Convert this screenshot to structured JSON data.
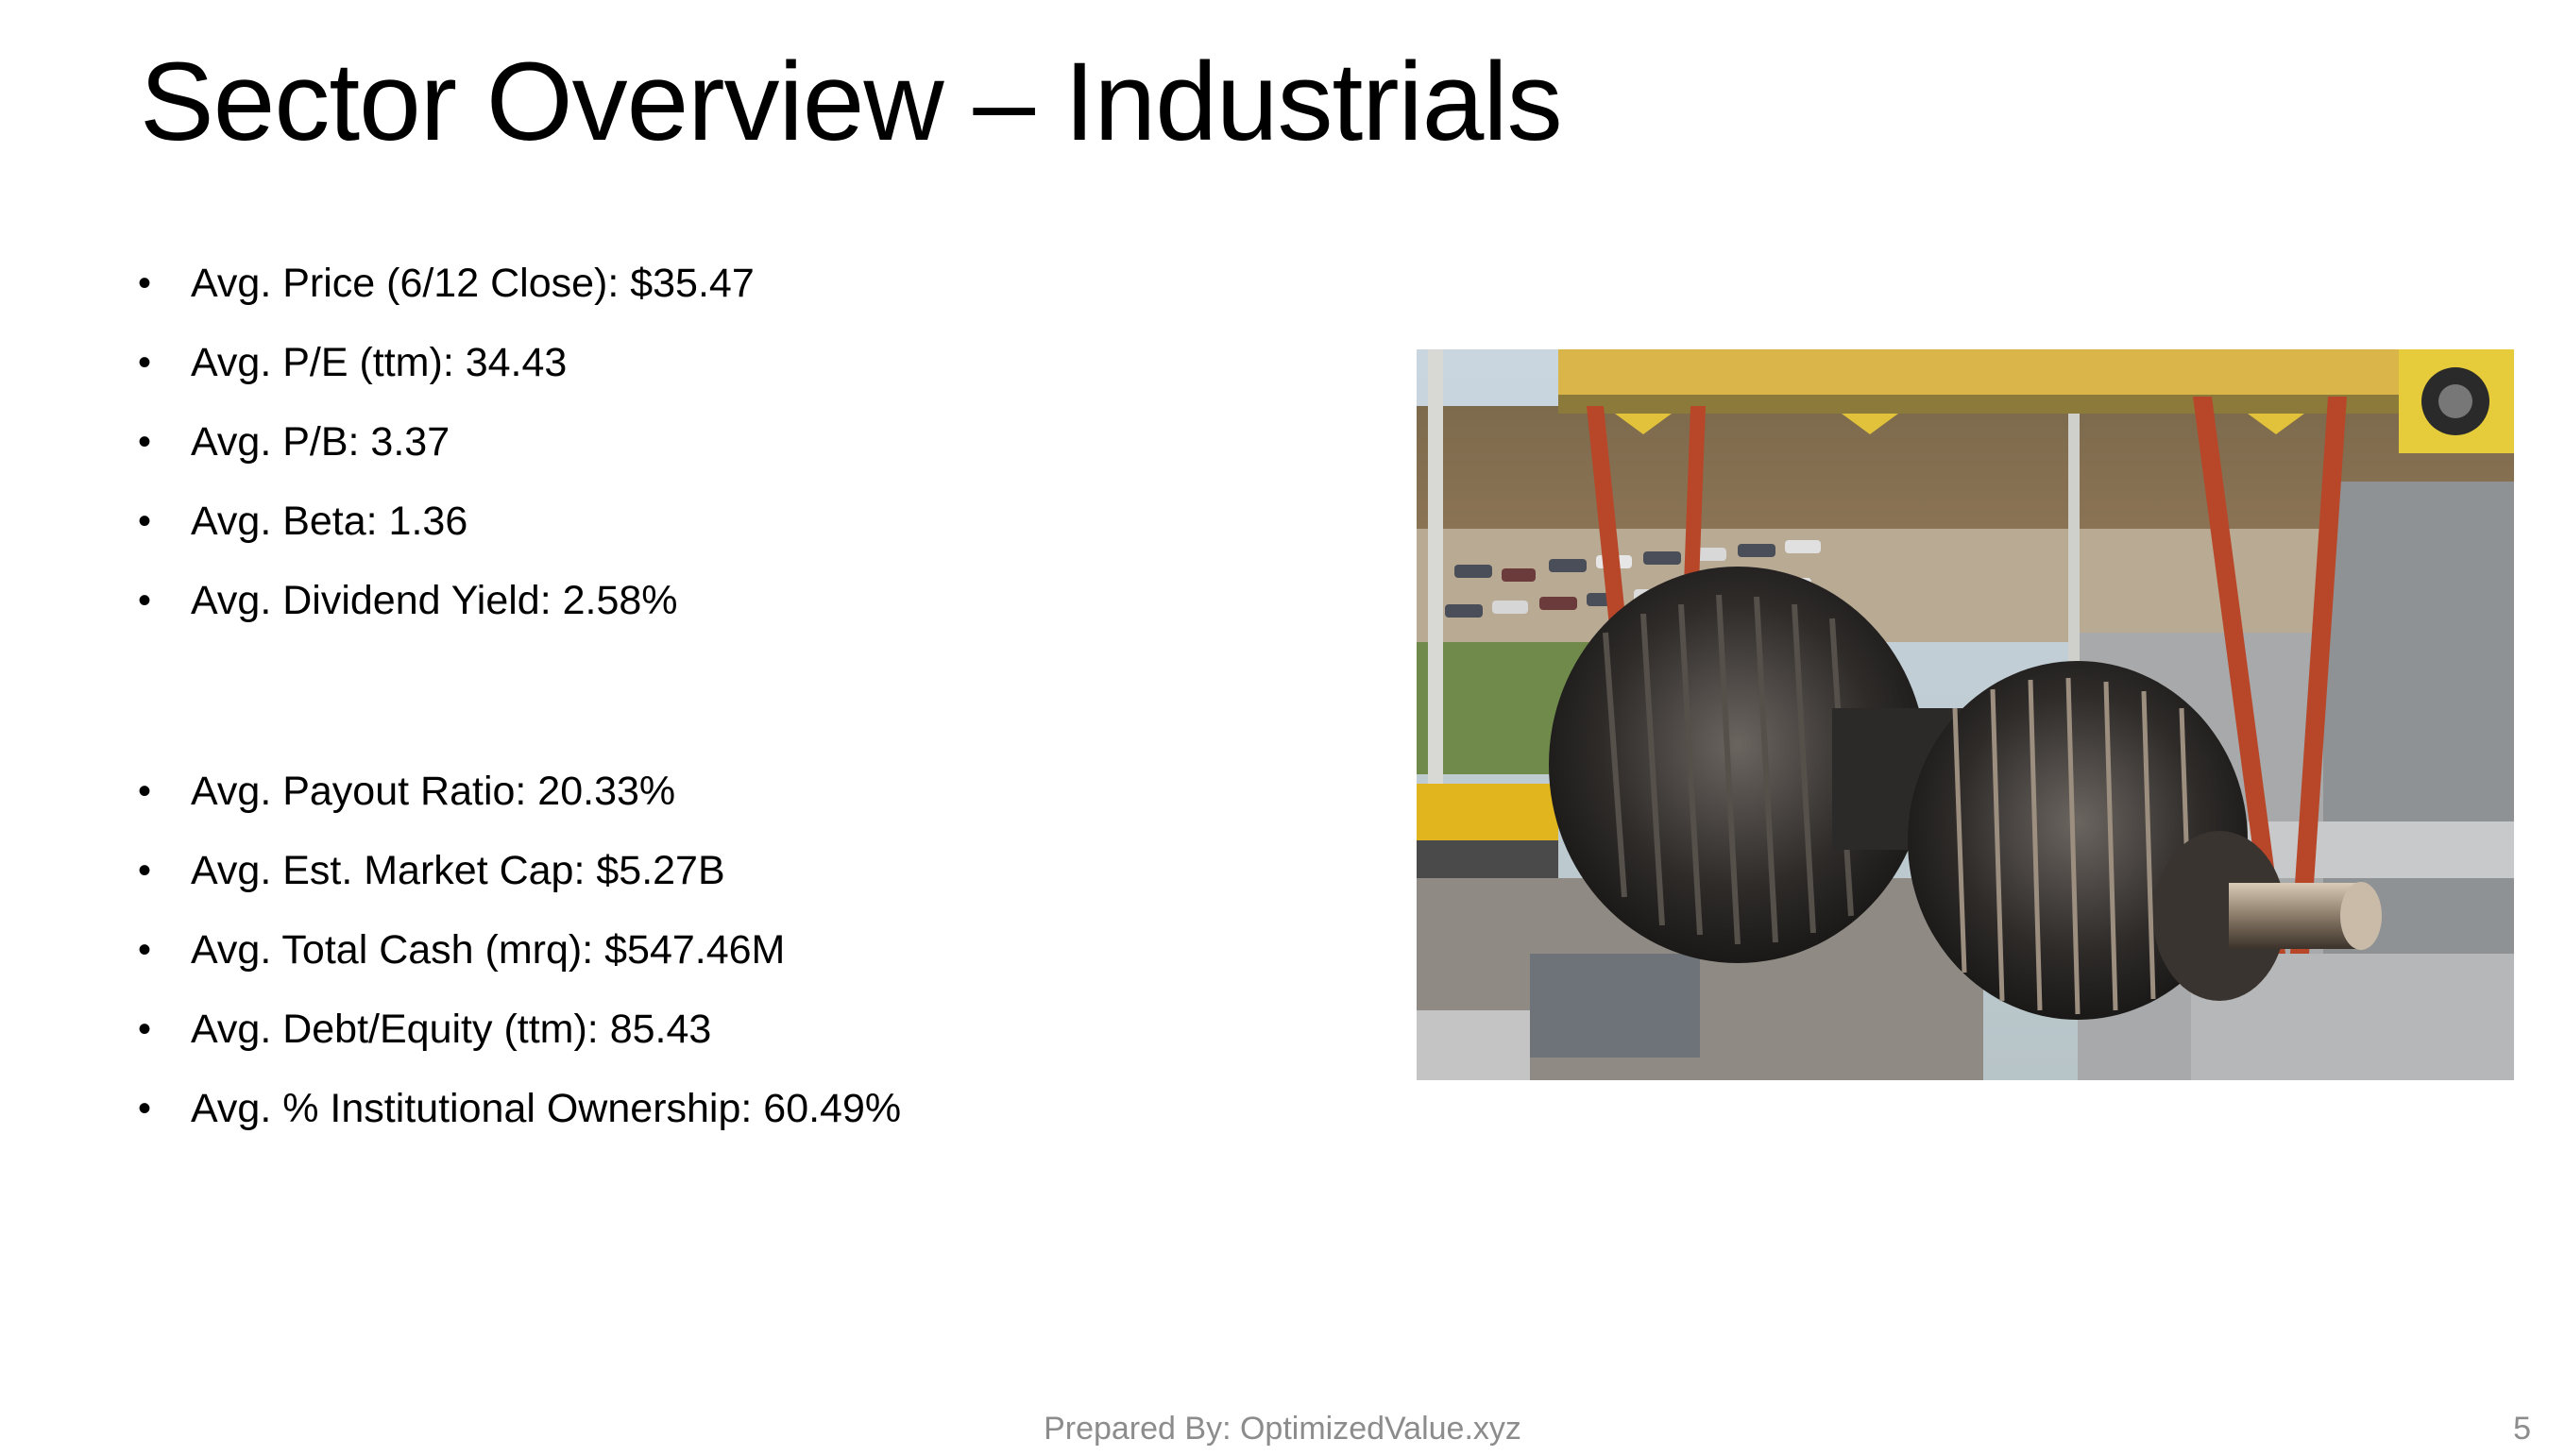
{
  "slide": {
    "title": "Sector Overview – Industrials",
    "bullet_marker": "•",
    "bullets_group1": [
      "Avg. Price (6/12 Close): $35.47",
      "Avg. P/E (ttm): 34.43",
      "Avg. P/B: 3.37",
      "Avg. Beta: 1.36",
      "Avg. Dividend Yield: 2.58%"
    ],
    "bullets_group2": [
      "Avg. Payout Ratio: 20.33%",
      "Avg. Est. Market Cap: $5.27B",
      "Avg. Total Cash (mrq): $547.46M",
      "Avg. Debt/Equity (ttm): 85.43",
      "Avg. % Institutional Ownership: 60.49%"
    ],
    "footer": "Prepared By: OptimizedValue.xyz",
    "page_number": "5"
  }
}
